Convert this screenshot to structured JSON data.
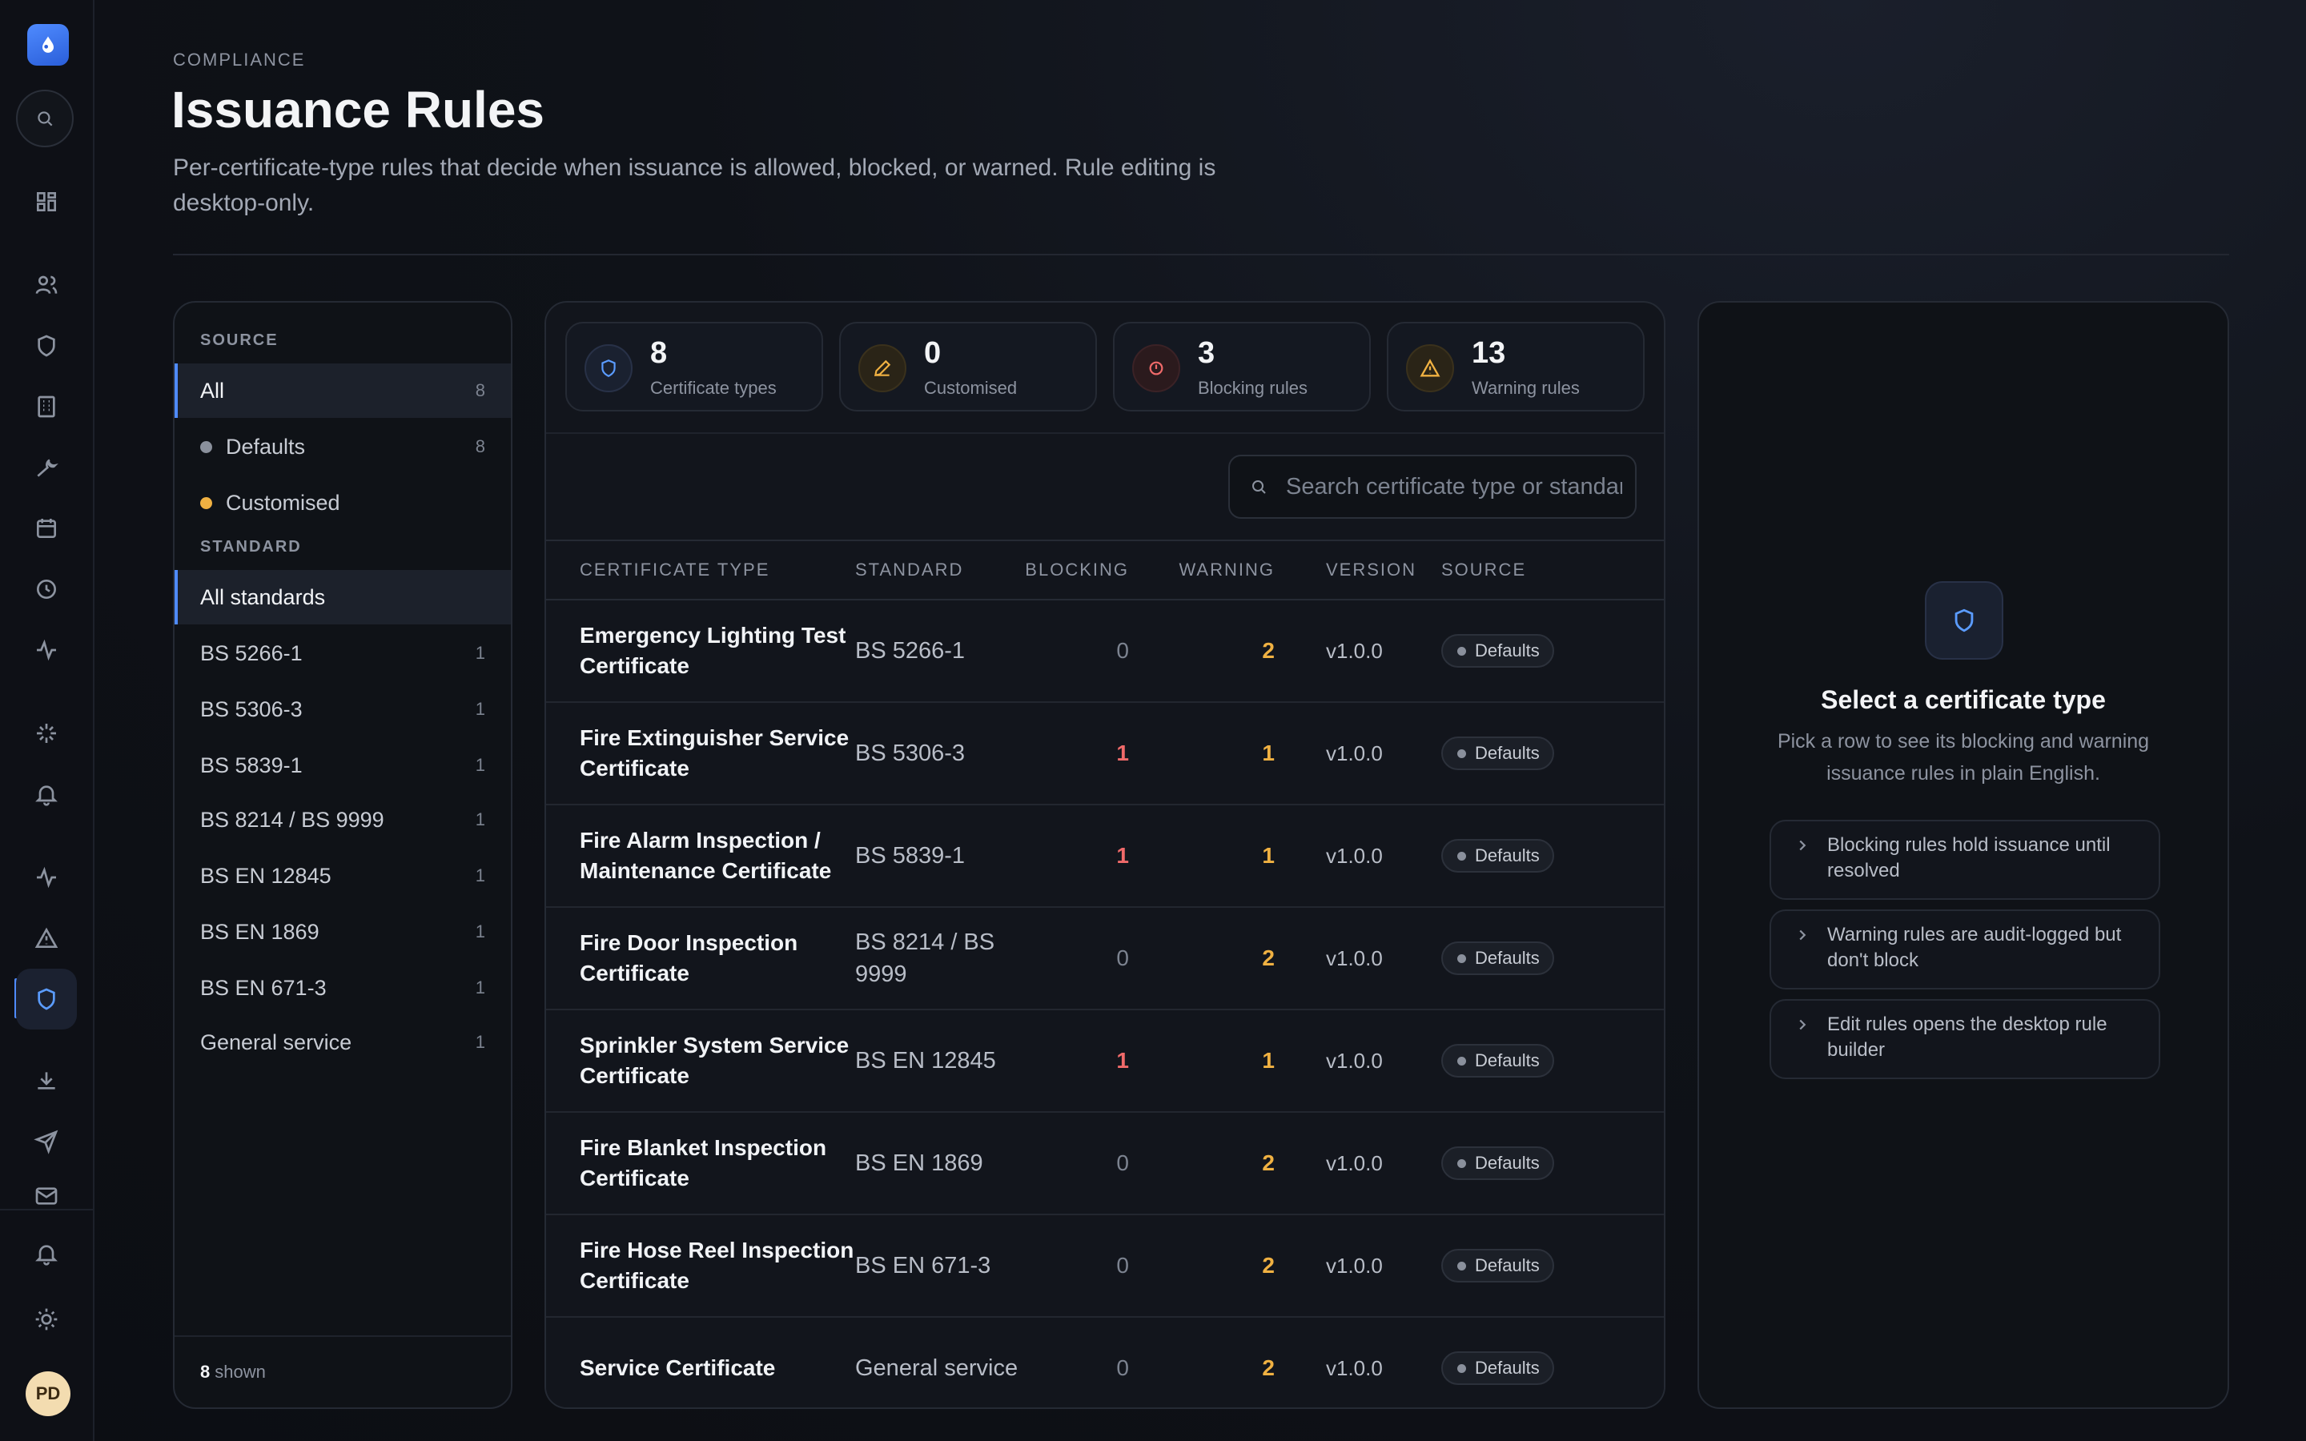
{
  "header": {
    "eyebrow": "COMPLIANCE",
    "title": "Issuance Rules",
    "subtitle": "Per-certificate-type rules that decide when issuance is allowed, blocked, or warned. Rule editing is desktop-only."
  },
  "user": {
    "initials": "PD"
  },
  "filters": {
    "source_label": "SOURCE",
    "source": [
      {
        "label": "All",
        "count": "8",
        "dot": ""
      },
      {
        "label": "Defaults",
        "count": "8",
        "dot": "#8a909c"
      },
      {
        "label": "Customised",
        "count": "",
        "dot": "#f0b142"
      }
    ],
    "standard_label": "STANDARD",
    "standards": [
      {
        "label": "All standards",
        "count": ""
      },
      {
        "label": "BS 5266-1",
        "count": "1"
      },
      {
        "label": "BS 5306-3",
        "count": "1"
      },
      {
        "label": "BS 5839-1",
        "count": "1"
      },
      {
        "label": "BS 8214 / BS 9999",
        "count": "1"
      },
      {
        "label": "BS EN 12845",
        "count": "1"
      },
      {
        "label": "BS EN 1869",
        "count": "1"
      },
      {
        "label": "BS EN 671-3",
        "count": "1"
      },
      {
        "label": "General service",
        "count": "1"
      }
    ],
    "footer_count": "8",
    "footer_text": "shown"
  },
  "stats": [
    {
      "value": "8",
      "label": "Certificate types",
      "icon": "shield-icon",
      "color": "#5b9cff"
    },
    {
      "value": "0",
      "label": "Customised",
      "icon": "pencil-icon",
      "color": "#f0b142"
    },
    {
      "value": "3",
      "label": "Blocking rules",
      "icon": "block-icon",
      "color": "#f06a6a"
    },
    {
      "value": "13",
      "label": "Warning rules",
      "icon": "warning-icon",
      "color": "#f0b142"
    }
  ],
  "search": {
    "placeholder": "Search certificate type or standard"
  },
  "table": {
    "columns": [
      "CERTIFICATE TYPE",
      "STANDARD",
      "BLOCKING",
      "WARNING",
      "VERSION",
      "SOURCE"
    ],
    "rows": [
      {
        "type": "Emergency Lighting Test Certificate",
        "standard": "BS 5266-1",
        "blocking": "0",
        "warning": "2",
        "version": "v1.0.0",
        "source": "Defaults"
      },
      {
        "type": "Fire Extinguisher Service Certificate",
        "standard": "BS 5306-3",
        "blocking": "1",
        "warning": "1",
        "version": "v1.0.0",
        "source": "Defaults"
      },
      {
        "type": "Fire Alarm Inspection / Maintenance Certificate",
        "standard": "BS 5839-1",
        "blocking": "1",
        "warning": "1",
        "version": "v1.0.0",
        "source": "Defaults"
      },
      {
        "type": "Fire Door Inspection Certificate",
        "standard": "BS 8214 / BS 9999",
        "blocking": "0",
        "warning": "2",
        "version": "v1.0.0",
        "source": "Defaults"
      },
      {
        "type": "Sprinkler System Service Certificate",
        "standard": "BS EN 12845",
        "blocking": "1",
        "warning": "1",
        "version": "v1.0.0",
        "source": "Defaults"
      },
      {
        "type": "Fire Blanket Inspection Certificate",
        "standard": "BS EN 1869",
        "blocking": "0",
        "warning": "2",
        "version": "v1.0.0",
        "source": "Defaults"
      },
      {
        "type": "Fire Hose Reel Inspection Certificate",
        "standard": "BS EN 671-3",
        "blocking": "0",
        "warning": "2",
        "version": "v1.0.0",
        "source": "Defaults"
      },
      {
        "type": "Service Certificate",
        "standard": "General service",
        "blocking": "0",
        "warning": "2",
        "version": "v1.0.0",
        "source": "Defaults"
      }
    ]
  },
  "detail": {
    "title": "Select a certificate type",
    "text": "Pick a row to see its blocking and warning issuance rules in plain English.",
    "hints": [
      "Blocking rules hold issuance until resolved",
      "Warning rules are audit-logged but don't block",
      "Edit rules opens the desktop rule builder"
    ]
  },
  "colors": {
    "accent": "#4f8bff",
    "blocking": "#f06a6a",
    "warning": "#f0b142"
  }
}
